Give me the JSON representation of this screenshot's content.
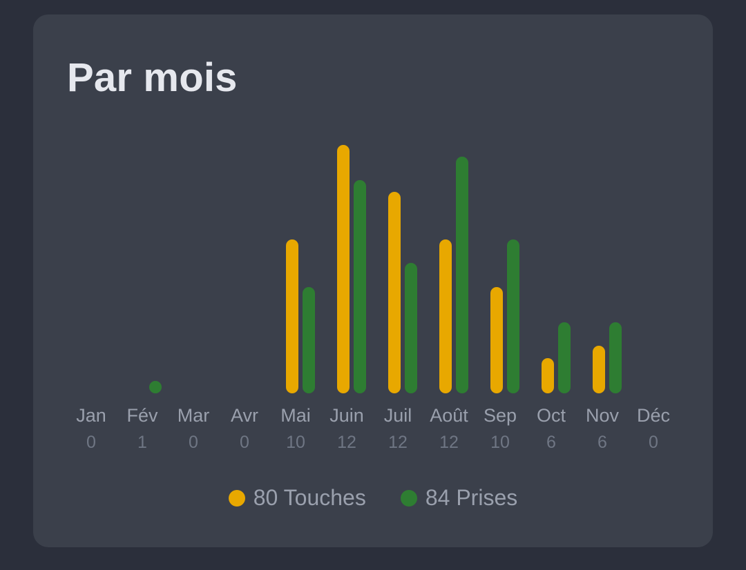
{
  "card": {
    "title": "Par mois"
  },
  "colors": {
    "touches": "#e8a800",
    "prises": "#2e7d32",
    "background": "#2b2f3b",
    "card": "#3b404b"
  },
  "legend": {
    "touches": {
      "count": "80",
      "label": "Touches",
      "text": "80 Touches"
    },
    "prises": {
      "count": "84",
      "label": "Prises",
      "text": "84 Prises"
    }
  },
  "months": [
    {
      "label": "Jan",
      "count": "0"
    },
    {
      "label": "Fév",
      "count": "1"
    },
    {
      "label": "Mar",
      "count": "0"
    },
    {
      "label": "Avr",
      "count": "0"
    },
    {
      "label": "Mai",
      "count": "10"
    },
    {
      "label": "Juin",
      "count": "12"
    },
    {
      "label": "Juil",
      "count": "12"
    },
    {
      "label": "Août",
      "count": "12"
    },
    {
      "label": "Sep",
      "count": "10"
    },
    {
      "label": "Oct",
      "count": "6"
    },
    {
      "label": "Nov",
      "count": "6"
    },
    {
      "label": "Déc",
      "count": "0"
    }
  ],
  "chart_data": {
    "type": "bar",
    "title": "Par mois",
    "categories": [
      "Jan",
      "Fév",
      "Mar",
      "Avr",
      "Mai",
      "Juin",
      "Juil",
      "Août",
      "Sep",
      "Oct",
      "Nov",
      "Déc"
    ],
    "category_sublabels": [
      0,
      1,
      0,
      0,
      10,
      12,
      12,
      12,
      10,
      6,
      6,
      0
    ],
    "series": [
      {
        "name": "Touches",
        "total": 80,
        "color": "#e8a800",
        "values": [
          0,
          0,
          0,
          0,
          13,
          21,
          17,
          13,
          9,
          3,
          4,
          0
        ]
      },
      {
        "name": "Prises",
        "total": 84,
        "color": "#2e7d32",
        "values": [
          0,
          1,
          0,
          0,
          9,
          18,
          11,
          20,
          13,
          6,
          6,
          0
        ]
      }
    ],
    "xlabel": "",
    "ylabel": "",
    "grid": false,
    "y_axis_visible": false,
    "legend_position": "bottom-center",
    "ylim": [
      0,
      21
    ]
  }
}
